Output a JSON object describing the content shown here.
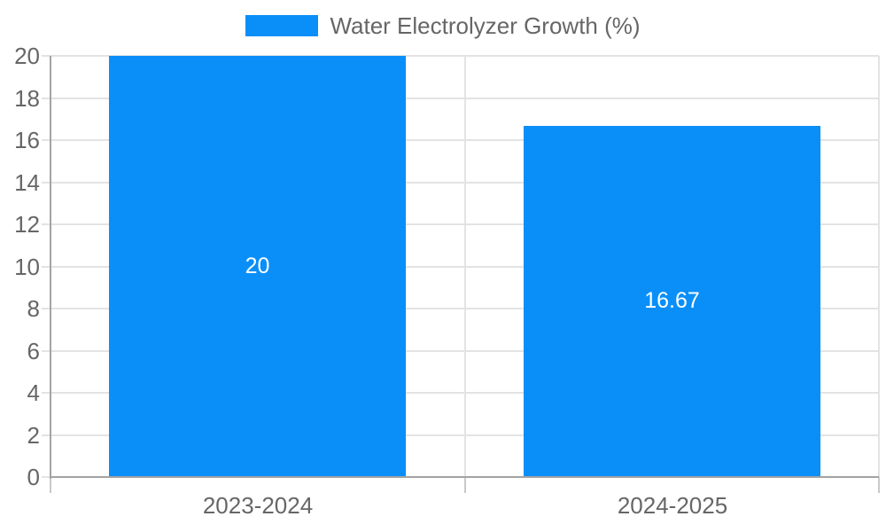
{
  "legend": {
    "label": "Water Electrolyzer Growth (%)",
    "swatch_color": "#0A8FF9"
  },
  "chart_data": {
    "type": "bar",
    "title": "Water Electrolyzer Growth (%)",
    "categories": [
      "2023-2024",
      "2024-2025"
    ],
    "values": [
      20,
      16.67
    ],
    "data_labels": [
      "20",
      "16.67"
    ],
    "xlabel": "",
    "ylabel": "",
    "ylim": [
      0,
      20
    ],
    "yticks": [
      0,
      2,
      4,
      6,
      8,
      10,
      12,
      14,
      16,
      18,
      20
    ],
    "grid": true,
    "legend_position": "top",
    "colors": {
      "bar": "#0A8FF9",
      "grid": "#e3e3e3",
      "axis_border": "#a3a3a3",
      "below_axis_tick": "#c9c9c9",
      "tick_label": "#666666",
      "data_label": "#ffffff"
    }
  }
}
